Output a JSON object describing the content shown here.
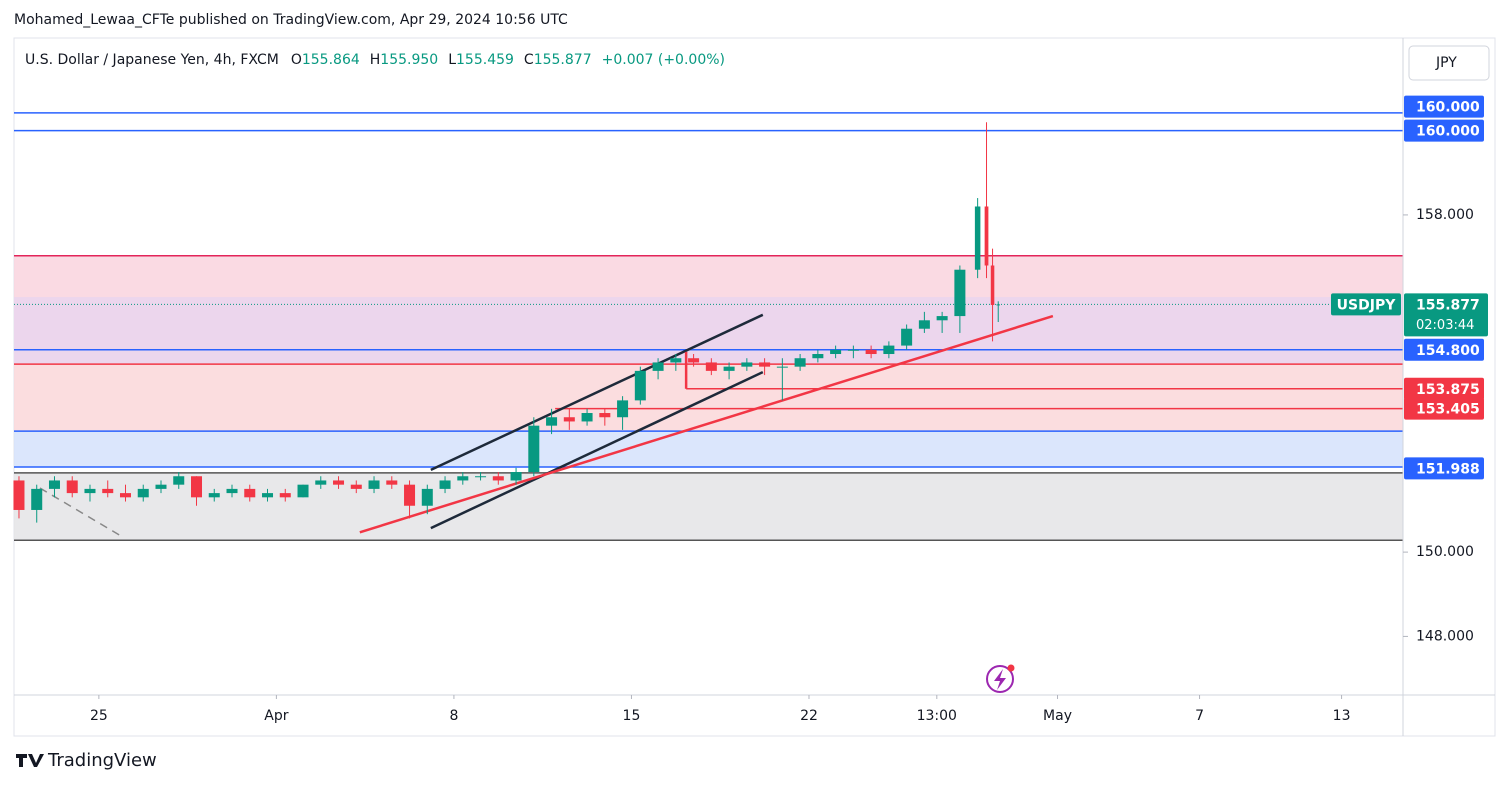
{
  "header": {
    "publisher": "Mohamed_Lewaa_CFTe published on TradingView.com, Apr 29, 2024 10:56 UTC",
    "footer": "TradingView"
  },
  "chart_data": {
    "type": "candlestick",
    "legend": {
      "symbol": "U.S. Dollar / Japanese Yen, 4h, FXCM",
      "items": [
        {
          "key": "O",
          "value": "155.864"
        },
        {
          "key": "H",
          "value": "155.950"
        },
        {
          "key": "L",
          "value": "155.459"
        },
        {
          "key": "C",
          "value": "155.877"
        }
      ],
      "change": "+0.007 (+0.00%)"
    },
    "currency": "JPY",
    "ticker_label": "USDJPY",
    "last_price": {
      "value": 155.877,
      "label": "155.877"
    },
    "countdown": "02:03:44",
    "up_color": "#089981",
    "down_color": "#f23645",
    "xlim": [
      -2.39,
      36.73
    ],
    "ylim": [
      146.61,
      162.15
    ],
    "xticks": [
      {
        "value": 0,
        "label": "25"
      },
      {
        "value": 5,
        "label": "Apr"
      },
      {
        "value": 10,
        "label": "8"
      },
      {
        "value": 15,
        "label": "15"
      },
      {
        "value": 20,
        "label": "22"
      },
      {
        "value": 23.6,
        "label": "13:00"
      },
      {
        "value": 27,
        "label": "May"
      },
      {
        "value": 31,
        "label": "7"
      },
      {
        "value": 35,
        "label": "13"
      }
    ],
    "yticks": [
      {
        "value": 158,
        "label": "158.000"
      },
      {
        "value": 150,
        "label": "150.000"
      },
      {
        "value": 148,
        "label": "148.000"
      }
    ],
    "x": [
      -2.25,
      -1.75,
      -1.25,
      -0.75,
      -0.25,
      0.25,
      0.75,
      1.25,
      1.75,
      2.25,
      2.75,
      3.25,
      3.75,
      4.25,
      4.75,
      5.25,
      5.75,
      6.25,
      6.75,
      7.25,
      7.75,
      8.25,
      8.75,
      9.25,
      9.75,
      10.25,
      10.75,
      11.25,
      11.75,
      12.25,
      12.75,
      13.25,
      13.75,
      14.25,
      14.75,
      15.25,
      15.75,
      16.25,
      16.75,
      17.25,
      17.75,
      18.25,
      18.75,
      19.25,
      19.75,
      20.25,
      20.75,
      21.25,
      21.75,
      22.25,
      22.75,
      23.25,
      23.75,
      24.25,
      24.75,
      25.0,
      25.17,
      25.33
    ],
    "open": [
      151.7,
      151.0,
      151.5,
      151.7,
      151.4,
      151.5,
      151.4,
      151.3,
      151.5,
      151.6,
      151.8,
      151.3,
      151.4,
      151.5,
      151.3,
      151.4,
      151.3,
      151.6,
      151.7,
      151.6,
      151.5,
      151.7,
      151.6,
      151.1,
      151.5,
      151.7,
      151.8,
      151.8,
      151.7,
      151.9,
      153.0,
      153.2,
      153.1,
      153.3,
      153.2,
      153.6,
      154.3,
      154.5,
      154.6,
      154.5,
      154.3,
      154.4,
      154.5,
      154.4,
      154.4,
      154.6,
      154.7,
      154.8,
      154.8,
      154.7,
      154.9,
      155.3,
      155.5,
      155.6,
      156.7,
      158.2,
      156.8,
      155.864
    ],
    "high": [
      151.8,
      151.6,
      151.8,
      151.8,
      151.6,
      151.7,
      151.6,
      151.6,
      151.7,
      151.9,
      151.8,
      151.5,
      151.6,
      151.6,
      151.5,
      151.5,
      151.6,
      151.8,
      151.8,
      151.7,
      151.8,
      151.8,
      151.7,
      151.6,
      151.8,
      151.9,
      151.9,
      151.9,
      152.0,
      153.2,
      153.4,
      153.4,
      153.4,
      153.4,
      153.7,
      154.4,
      154.6,
      154.7,
      154.7,
      154.6,
      154.5,
      154.6,
      154.6,
      154.6,
      154.7,
      154.8,
      154.9,
      154.9,
      154.9,
      155.0,
      155.4,
      155.7,
      155.7,
      156.8,
      158.4,
      160.2,
      157.2,
      155.95
    ],
    "low": [
      150.8,
      150.7,
      151.3,
      151.3,
      151.2,
      151.3,
      151.2,
      151.2,
      151.4,
      151.5,
      151.1,
      151.2,
      151.3,
      151.2,
      151.2,
      151.2,
      151.3,
      151.5,
      151.5,
      151.4,
      151.4,
      151.5,
      150.8,
      150.9,
      151.4,
      151.6,
      151.7,
      151.6,
      151.6,
      151.8,
      152.8,
      152.9,
      153.0,
      153.0,
      152.9,
      153.5,
      154.1,
      154.3,
      154.4,
      154.2,
      154.1,
      154.3,
      154.2,
      153.6,
      154.3,
      154.5,
      154.6,
      154.6,
      154.6,
      154.6,
      154.8,
      155.2,
      155.2,
      155.2,
      156.5,
      156.5,
      155.0,
      155.459
    ],
    "close": [
      151.0,
      151.5,
      151.7,
      151.4,
      151.5,
      151.4,
      151.3,
      151.5,
      151.6,
      151.8,
      151.3,
      151.4,
      151.5,
      151.3,
      151.4,
      151.3,
      151.6,
      151.7,
      151.6,
      151.5,
      151.7,
      151.6,
      151.1,
      151.5,
      151.7,
      151.8,
      151.8,
      151.7,
      151.9,
      153.0,
      153.2,
      153.1,
      153.3,
      153.2,
      153.6,
      154.3,
      154.5,
      154.6,
      154.5,
      154.3,
      154.4,
      154.5,
      154.4,
      154.4,
      154.6,
      154.7,
      154.8,
      154.8,
      154.7,
      154.9,
      155.3,
      155.5,
      155.6,
      156.7,
      158.2,
      156.8,
      155.864,
      155.877
    ],
    "zones": [
      {
        "top": 157.03,
        "bottom": 154.46,
        "color": "#f9d3de"
      },
      {
        "top": 156.05,
        "bottom": 154.46,
        "color": "#e9d5ef"
      },
      {
        "top": 154.46,
        "bottom": 152.87,
        "color": "#fad7d9"
      },
      {
        "top": 152.87,
        "bottom": 152.02,
        "color": "#d5e2fc"
      },
      {
        "top": 151.88,
        "bottom": 150.28,
        "color": "#e4e4e6"
      }
    ],
    "levels": [
      {
        "value": 160.42,
        "color": "#2962ff"
      },
      {
        "value": 160.0,
        "color": "#2962ff"
      },
      {
        "value": 157.03,
        "color": "#e3245a"
      },
      {
        "value": 154.8,
        "color": "#2962ff"
      },
      {
        "value": 154.46,
        "color": "#f23645"
      },
      {
        "value": 153.875,
        "color": "#f23645",
        "from": 16.54
      },
      {
        "value": 153.405,
        "color": "#f23645",
        "from": 12.85
      },
      {
        "value": 152.87,
        "color": "#2962ff"
      },
      {
        "value": 152.02,
        "color": "#2962ff"
      },
      {
        "value": 151.88,
        "color": "#555555"
      },
      {
        "value": 150.28,
        "color": "#555555"
      }
    ],
    "price_labels": [
      {
        "value": 160.0,
        "label": "160.000",
        "color": "#2962ff"
      },
      {
        "value": 160.0,
        "label": "160.000",
        "color": "#2962ff"
      },
      {
        "value": 154.8,
        "label": "154.800",
        "color": "#2962ff"
      },
      {
        "value": 153.875,
        "label": "153.875",
        "color": "#f23645"
      },
      {
        "value": 153.405,
        "label": "153.405",
        "color": "#f23645"
      },
      {
        "value": 151.988,
        "label": "151.988",
        "color": "#2962ff"
      }
    ],
    "drawings": [
      {
        "x": [
          9.35,
          18.7
        ],
        "y": [
          151.95,
          155.63
        ],
        "color": "#1e2a3a"
      },
      {
        "x": [
          9.35,
          18.7
        ],
        "y": [
          150.57,
          154.27
        ],
        "color": "#1e2a3a"
      },
      {
        "x": [
          7.35,
          26.87
        ],
        "y": [
          150.47,
          155.6
        ],
        "color": "#f23645"
      },
      {
        "x": [
          -1.66,
          0.59
        ],
        "y": [
          151.52,
          150.4
        ],
        "color": "#888888",
        "dash": true
      },
      {
        "x": [
          16.54,
          16.54
        ],
        "y": [
          154.75,
          153.875
        ],
        "color": "#f23645"
      }
    ]
  }
}
